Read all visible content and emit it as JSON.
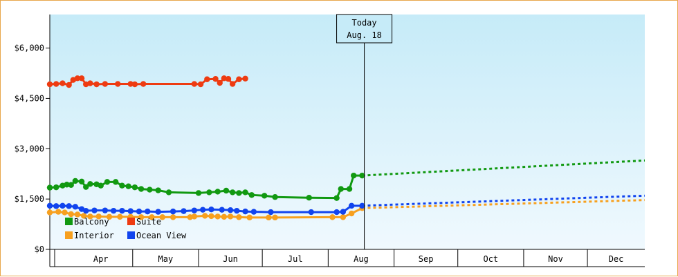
{
  "chart_data": {
    "type": "line",
    "title": "",
    "xlabel": "",
    "ylabel": "",
    "ylim": [
      0,
      7000
    ],
    "y_ticks": [
      {
        "value": 0,
        "label": "$0"
      },
      {
        "value": 1500,
        "label": "$1,500"
      },
      {
        "value": 3000,
        "label": "$3,000"
      },
      {
        "value": 4500,
        "label": "$4,500"
      },
      {
        "value": 6000,
        "label": "$6,000"
      }
    ],
    "x_unit": "day of year",
    "xlim": [
      82,
      362
    ],
    "months": [
      {
        "label": "Apr",
        "start": 91,
        "end": 121
      },
      {
        "label": "May",
        "start": 121,
        "end": 152
      },
      {
        "label": "Jun",
        "start": 152,
        "end": 182
      },
      {
        "label": "Jul",
        "start": 182,
        "end": 213
      },
      {
        "label": "Aug",
        "start": 213,
        "end": 244
      },
      {
        "label": "Sep",
        "start": 244,
        "end": 274
      },
      {
        "label": "Oct",
        "start": 274,
        "end": 305
      },
      {
        "label": "Nov",
        "start": 305,
        "end": 335
      },
      {
        "label": "Dec",
        "start": 335,
        "end": 366
      }
    ],
    "today": {
      "line1": "Today",
      "line2": "Aug. 18",
      "day": 230
    },
    "grid": true,
    "legend_position": "bottom-left",
    "series": [
      {
        "name": "Balcony",
        "color": "#119911",
        "points": [
          [
            82,
            1840
          ],
          [
            85,
            1850
          ],
          [
            88,
            1900
          ],
          [
            90,
            1930
          ],
          [
            92,
            1920
          ],
          [
            94,
            2040
          ],
          [
            97,
            2020
          ],
          [
            99,
            1860
          ],
          [
            101,
            1950
          ],
          [
            104,
            1940
          ],
          [
            106,
            1900
          ],
          [
            109,
            2010
          ],
          [
            113,
            2010
          ],
          [
            116,
            1900
          ],
          [
            119,
            1880
          ],
          [
            122,
            1850
          ],
          [
            125,
            1800
          ],
          [
            129,
            1780
          ],
          [
            133,
            1760
          ],
          [
            138,
            1700
          ],
          [
            152,
            1680
          ],
          [
            157,
            1700
          ],
          [
            161,
            1720
          ],
          [
            165,
            1750
          ],
          [
            168,
            1700
          ],
          [
            171,
            1680
          ],
          [
            174,
            1700
          ],
          [
            177,
            1620
          ],
          [
            183,
            1600
          ],
          [
            188,
            1560
          ],
          [
            204,
            1540
          ],
          [
            217,
            1530
          ],
          [
            219,
            1800
          ],
          [
            223,
            1800
          ],
          [
            225,
            2200
          ],
          [
            229,
            2200
          ]
        ],
        "projection": [
          [
            229,
            2200
          ],
          [
            362,
            2650
          ]
        ]
      },
      {
        "name": "Suite",
        "color": "#ee3b11",
        "points": [
          [
            82,
            4920
          ],
          [
            85,
            4930
          ],
          [
            88,
            4950
          ],
          [
            91,
            4900
          ],
          [
            93,
            5050
          ],
          [
            95,
            5100
          ],
          [
            97,
            5100
          ],
          [
            99,
            4920
          ],
          [
            101,
            4950
          ],
          [
            104,
            4920
          ],
          [
            108,
            4930
          ],
          [
            114,
            4930
          ],
          [
            120,
            4930
          ],
          [
            122,
            4920
          ],
          [
            126,
            4930
          ],
          [
            150,
            4930
          ],
          [
            153,
            4920
          ],
          [
            156,
            5070
          ],
          [
            160,
            5080
          ],
          [
            162,
            4960
          ],
          [
            164,
            5100
          ],
          [
            166,
            5080
          ],
          [
            168,
            4930
          ],
          [
            171,
            5070
          ],
          [
            174,
            5090
          ]
        ],
        "projection": []
      },
      {
        "name": "Interior",
        "color": "#f7a01f",
        "points": [
          [
            82,
            1100
          ],
          [
            86,
            1120
          ],
          [
            89,
            1100
          ],
          [
            92,
            1050
          ],
          [
            95,
            1040
          ],
          [
            98,
            1000
          ],
          [
            101,
            980
          ],
          [
            105,
            980
          ],
          [
            110,
            970
          ],
          [
            115,
            970
          ],
          [
            120,
            970
          ],
          [
            125,
            960
          ],
          [
            130,
            960
          ],
          [
            135,
            960
          ],
          [
            140,
            960
          ],
          [
            148,
            960
          ],
          [
            150,
            980
          ],
          [
            155,
            1000
          ],
          [
            158,
            990
          ],
          [
            161,
            980
          ],
          [
            164,
            970
          ],
          [
            167,
            980
          ],
          [
            171,
            960
          ],
          [
            176,
            950
          ],
          [
            185,
            950
          ],
          [
            188,
            950
          ],
          [
            215,
            960
          ],
          [
            220,
            960
          ],
          [
            224,
            1070
          ],
          [
            229,
            1230
          ]
        ],
        "projection": [
          [
            229,
            1230
          ],
          [
            362,
            1470
          ]
        ]
      },
      {
        "name": "Ocean View",
        "color": "#1144ee",
        "points": [
          [
            82,
            1300
          ],
          [
            85,
            1290
          ],
          [
            88,
            1300
          ],
          [
            91,
            1290
          ],
          [
            94,
            1270
          ],
          [
            97,
            1200
          ],
          [
            99,
            1150
          ],
          [
            103,
            1160
          ],
          [
            108,
            1160
          ],
          [
            112,
            1150
          ],
          [
            116,
            1150
          ],
          [
            120,
            1140
          ],
          [
            124,
            1130
          ],
          [
            128,
            1130
          ],
          [
            133,
            1120
          ],
          [
            140,
            1130
          ],
          [
            145,
            1140
          ],
          [
            150,
            1160
          ],
          [
            154,
            1180
          ],
          [
            158,
            1190
          ],
          [
            163,
            1180
          ],
          [
            167,
            1170
          ],
          [
            170,
            1150
          ],
          [
            174,
            1130
          ],
          [
            178,
            1120
          ],
          [
            186,
            1110
          ],
          [
            205,
            1110
          ],
          [
            217,
            1110
          ],
          [
            220,
            1120
          ],
          [
            224,
            1300
          ],
          [
            229,
            1300
          ]
        ],
        "projection": [
          [
            229,
            1300
          ],
          [
            362,
            1600
          ]
        ]
      }
    ]
  }
}
